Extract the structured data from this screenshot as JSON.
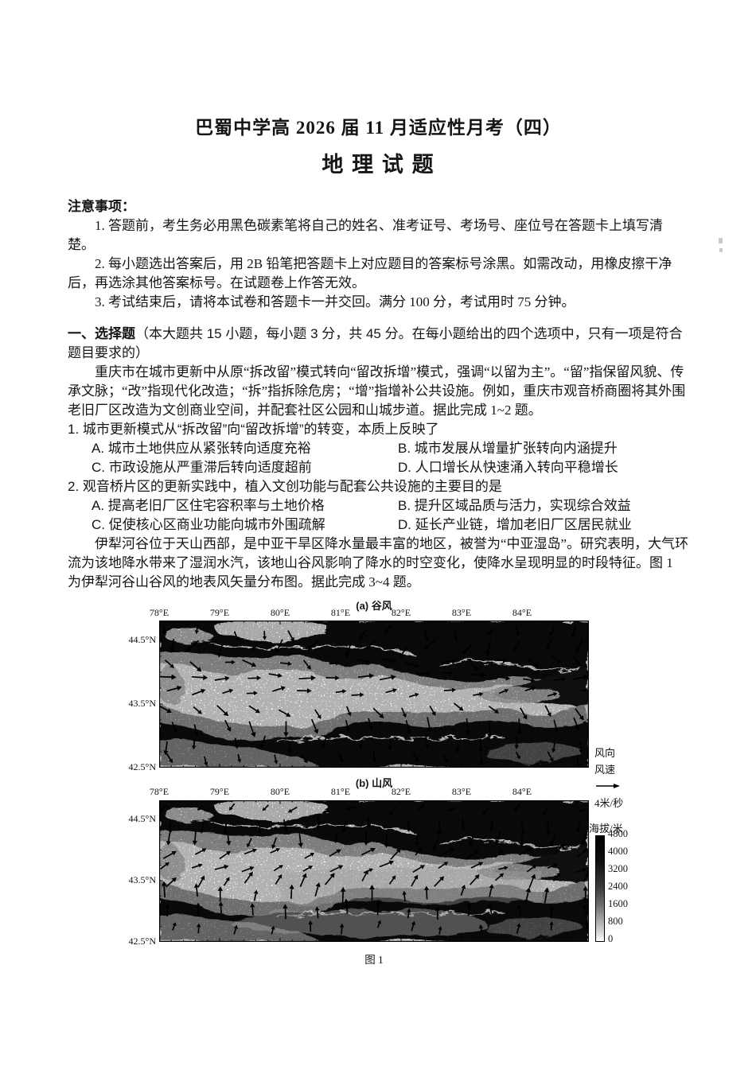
{
  "header": {
    "title": "巴蜀中学高 2026 届 11 月适应性月考（四）",
    "subject": "地 理 试 题"
  },
  "notice": {
    "heading": "注意事项：",
    "items": [
      "1. 答题前，考生务必用黑色碳素笔将自己的姓名、准考证号、考场号、座位号在答题卡上填写清楚。",
      "2. 每小题选出答案后，用 2B 铅笔把答题卡上对应题目的答案标号涂黑。如需改动，用橡皮擦干净后，再选涂其他答案标号。在试题卷上作答无效。",
      "3. 考试结束后，请将本试卷和答题卡一并交回。满分 100 分，考试用时 75 分钟。"
    ]
  },
  "section": {
    "heading_bold": "一、选择题",
    "heading_rest": "（本大题共 15 小题，每小题 3 分，共 45 分。在每小题给出的四个选项中，只有一项是符合题目要求的）",
    "passage1": "重庆市在城市更新中从原“拆改留”模式转向“留改拆增”模式，强调“以留为主”。“留”指保留风貌、传承文脉；“改”指现代化改造；“拆”指拆除危房；“增”指增补公共设施。例如，重庆市观音桥商圈将其外围老旧厂区改造为文创商业空间，并配套社区公园和山城步道。据此完成 1~2 题。",
    "questions": [
      {
        "number": "1.",
        "stem": "城市更新模式从“拆改留”向“留改拆增”的转变，本质上反映了",
        "options": [
          {
            "label": "A.",
            "text": "城市土地供应从紧张转向适度充裕"
          },
          {
            "label": "B.",
            "text": "城市发展从增量扩张转向内涵提升"
          },
          {
            "label": "C.",
            "text": "市政设施从严重滞后转向适度超前"
          },
          {
            "label": "D.",
            "text": "人口增长从快速涌入转向平稳增长"
          }
        ]
      },
      {
        "number": "2.",
        "stem": "观音桥片区的更新实践中，植入文创功能与配套公共设施的主要目的是",
        "options": [
          {
            "label": "A.",
            "text": "提高老旧厂区住宅容积率与土地价格"
          },
          {
            "label": "B.",
            "text": "提升区域品质与活力，实现综合效益"
          },
          {
            "label": "C.",
            "text": "促使核心区商业功能向城市外围疏解"
          },
          {
            "label": "D.",
            "text": "延长产业链，增加老旧厂区居民就业"
          }
        ]
      }
    ],
    "passage2": "伊犁河谷位于天山西部，是中亚干旱区降水量最丰富的地区，被誉为“中亚湿岛”。研究表明，大气环流为该地降水带来了湿润水汽，该地山谷风影响了降水的时空变化，使降水呈现明显的时段特征。图 1 为伊犁河谷山谷风的地表风矢量分布图。据此完成 3~4 题。"
  },
  "figure": {
    "caption": "图 1",
    "panel_a_label": "(a) 谷风",
    "panel_b_label": "(b) 山风",
    "wind_legend": {
      "direction_label": "风向",
      "speed_label": "风速",
      "scale_label": "4米/秒"
    },
    "elev_legend": {
      "title": "海拔/米",
      "ticks": [
        "4800",
        "4000",
        "3200",
        "2400",
        "1600",
        "800",
        "0"
      ]
    }
  },
  "chart_data": [
    {
      "type": "heatmap",
      "panel": "a",
      "title": "(a) 谷风",
      "description": "伊犁河谷白天谷风地表风矢量分布，叠加地形灰度底图（天山山脉，河谷向西开口）",
      "x_ticks": [
        "78°E",
        "79°E",
        "80°E",
        "81°E",
        "82°E",
        "83°E",
        "84°E"
      ],
      "y_ticks": [
        "44.5°N",
        "43.5°N",
        "42.5°N"
      ],
      "x_range": [
        "78°E",
        "85°E"
      ],
      "y_range": [
        "42.5°N",
        "44.8°N"
      ],
      "vector_scale": "4米/秒",
      "vector_rows": [
        {
          "y": 0.07,
          "dir": -95,
          "spread": 80,
          "len": 9,
          "n": 14
        },
        {
          "y": 0.17,
          "dir": -120,
          "spread": 50,
          "len": 12,
          "n": 15
        },
        {
          "y": 0.28,
          "dir": -25,
          "spread": 60,
          "len": 11,
          "n": 16
        },
        {
          "y": 0.38,
          "dir": 0,
          "spread": 25,
          "len": 13,
          "n": 16
        },
        {
          "y": 0.49,
          "dir": 10,
          "spread": 28,
          "len": 11,
          "n": 16
        },
        {
          "y": 0.6,
          "dir": -50,
          "spread": 45,
          "len": 11,
          "n": 15
        },
        {
          "y": 0.71,
          "dir": -80,
          "spread": 32,
          "len": 12,
          "n": 15
        },
        {
          "y": 0.83,
          "dir": -95,
          "spread": 30,
          "len": 10,
          "n": 14
        },
        {
          "y": 0.93,
          "dir": -70,
          "spread": 45,
          "len": 8,
          "n": 13
        }
      ]
    },
    {
      "type": "heatmap",
      "panel": "b",
      "title": "(b) 山风",
      "description": "伊犁河谷夜间山风地表风矢量分布，南北山坡风矢量向谷地辐合",
      "x_ticks": [
        "78°E",
        "79°E",
        "80°E",
        "81°E",
        "82°E",
        "83°E",
        "84°E"
      ],
      "y_ticks": [
        "44.5°N",
        "43.5°N",
        "42.5°N"
      ],
      "x_range": [
        "78°E",
        "85°E"
      ],
      "y_range": [
        "42.5°N",
        "44.8°N"
      ],
      "vector_scale": "4米/秒",
      "vector_rows": [
        {
          "y": 0.06,
          "dir": -140,
          "spread": 60,
          "len": 7,
          "n": 14
        },
        {
          "y": 0.16,
          "dir": -90,
          "spread": 28,
          "len": 11,
          "n": 15
        },
        {
          "y": 0.27,
          "dir": -100,
          "spread": 35,
          "len": 11,
          "n": 16
        },
        {
          "y": 0.38,
          "dir": 35,
          "spread": 30,
          "len": 11,
          "n": 16
        },
        {
          "y": 0.48,
          "dir": 25,
          "spread": 30,
          "len": 11,
          "n": 16
        },
        {
          "y": 0.57,
          "dir": 55,
          "spread": 30,
          "len": 11,
          "n": 16
        },
        {
          "y": 0.67,
          "dir": 85,
          "spread": 25,
          "len": 12,
          "n": 15
        },
        {
          "y": 0.79,
          "dir": 92,
          "spread": 25,
          "len": 11,
          "n": 15
        },
        {
          "y": 0.91,
          "dir": 85,
          "spread": 35,
          "len": 8,
          "n": 13
        }
      ]
    },
    {
      "type": "table",
      "panel": "colorbar",
      "title": "海拔/米",
      "values": [
        4800,
        4000,
        3200,
        2400,
        1600,
        800,
        0
      ]
    }
  ]
}
